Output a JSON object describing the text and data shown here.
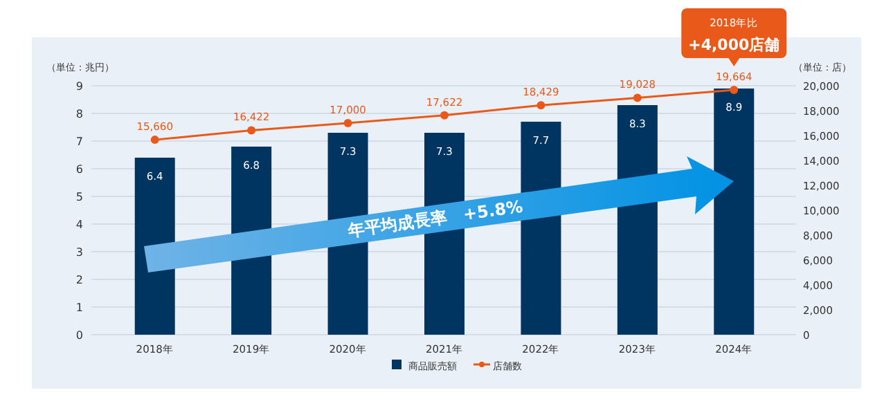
{
  "chart_data": {
    "type": "bar",
    "categories": [
      "2018年",
      "2019年",
      "2020年",
      "2021年",
      "2022年",
      "2023年",
      "2024年"
    ],
    "series": [
      {
        "name": "商品販売額",
        "color": "#003461",
        "values": [
          6.4,
          6.8,
          7.3,
          7.3,
          7.7,
          8.3,
          8.9
        ]
      },
      {
        "name": "店舗数",
        "type": "line",
        "axis": "y2",
        "color": "#e8591a",
        "marker": "circle",
        "values": [
          15660,
          16422,
          17000,
          17622,
          18429,
          19028,
          19664
        ],
        "value_labels": [
          "15,660",
          "16,422",
          "17,000",
          "17,622",
          "18,429",
          "19,028",
          "19,664"
        ]
      }
    ],
    "ylabel": "（単位：兆円）",
    "y2label": "（単位：店）",
    "ylim": [
      0,
      9
    ],
    "yticks": [
      0,
      1,
      2,
      3,
      4,
      5,
      6,
      7,
      8,
      9
    ],
    "y2lim": [
      0,
      20000
    ],
    "y2ticks": [
      {
        "value": 0,
        "label": "0"
      },
      {
        "value": 2000,
        "label": "2,000"
      },
      {
        "value": 4000,
        "label": "4,000"
      },
      {
        "value": 6000,
        "label": "6,000"
      },
      {
        "value": 8000,
        "label": "8,000"
      },
      {
        "value": 10000,
        "label": "10,000"
      },
      {
        "value": 12000,
        "label": "12,000"
      },
      {
        "value": 14000,
        "label": "14,000"
      },
      {
        "value": 16000,
        "label": "16,000"
      },
      {
        "value": 18000,
        "label": "18,000"
      },
      {
        "value": 20000,
        "label": "20,000"
      }
    ],
    "data_labels": true,
    "grid": "y",
    "legend": "bottom",
    "annotations": [
      "年平均成長率　+5.8%",
      "2018年比",
      "+4,000店舗"
    ]
  }
}
